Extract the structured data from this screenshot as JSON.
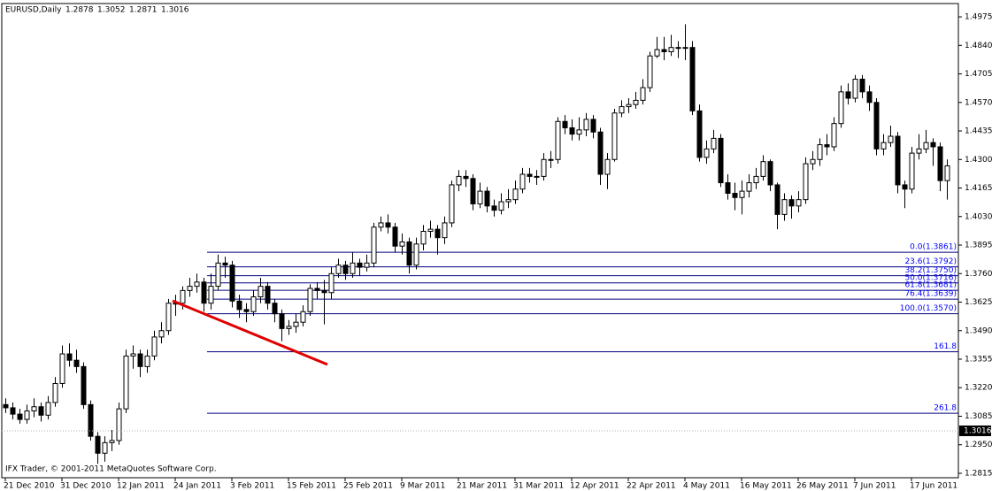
{
  "chart_data": {
    "type": "candlestick",
    "title": "EURUSD,Daily",
    "header_values": [
      1.2878,
      1.3052,
      1.2871,
      1.3016
    ],
    "footer": "IFX Trader, © 2001-2011 MetaQuotes Software Corp.",
    "categories": [
      "21 Dec 2010",
      null,
      null,
      null,
      null,
      null,
      null,
      null,
      "31 Dec 2010",
      null,
      null,
      null,
      null,
      null,
      null,
      null,
      "12 Jan 2011",
      null,
      null,
      null,
      null,
      null,
      null,
      null,
      "24 Jan 2011",
      null,
      null,
      null,
      null,
      null,
      null,
      null,
      "3 Feb 2011",
      null,
      null,
      null,
      null,
      null,
      null,
      null,
      "15 Feb 2011",
      null,
      null,
      null,
      null,
      null,
      null,
      null,
      "25 Feb 2011",
      null,
      null,
      null,
      null,
      null,
      null,
      null,
      "9 Mar 2011",
      null,
      null,
      null,
      null,
      null,
      null,
      null,
      "21 Mar 2011",
      null,
      null,
      null,
      null,
      null,
      null,
      null,
      "31 Mar 2011",
      null,
      null,
      null,
      null,
      null,
      null,
      null,
      "12 Apr 2011",
      null,
      null,
      null,
      null,
      null,
      null,
      null,
      "22 Apr 2011",
      null,
      null,
      null,
      null,
      null,
      null,
      null,
      "4 May 2011",
      null,
      null,
      null,
      null,
      null,
      null,
      null,
      "16 May 2011",
      null,
      null,
      null,
      null,
      null,
      null,
      null,
      "26 May 2011",
      null,
      null,
      null,
      null,
      null,
      null,
      null,
      "7 Jun 2011",
      null,
      null,
      null,
      null,
      null,
      null,
      null,
      "17 Jun 2011",
      null,
      null,
      null,
      null,
      null
    ],
    "open": [
      1.314,
      1.3125,
      1.3095,
      1.307,
      1.311,
      1.313,
      1.309,
      1.315,
      1.324,
      1.338,
      1.335,
      1.332,
      1.314,
      1.299,
      1.291,
      1.296,
      1.297,
      1.312,
      1.337,
      1.338,
      1.332,
      1.337,
      1.346,
      1.349,
      1.362,
      1.362,
      1.368,
      1.37,
      1.372,
      1.362,
      1.37,
      1.381,
      1.38,
      1.363,
      1.359,
      1.358,
      1.365,
      1.37,
      1.362,
      1.357,
      1.35,
      1.351,
      1.353,
      1.358,
      1.369,
      1.368,
      1.367,
      1.376,
      1.38,
      1.376,
      1.381,
      1.379,
      1.381,
      1.398,
      1.4,
      1.398,
      1.389,
      1.391,
      1.38,
      1.39,
      1.396,
      1.397,
      1.393,
      1.4,
      1.418,
      1.422,
      1.421,
      1.409,
      1.415,
      1.408,
      1.406,
      1.41,
      1.411,
      1.416,
      1.423,
      1.422,
      1.422,
      1.43,
      1.43,
      1.448,
      1.445,
      1.442,
      1.444,
      1.449,
      1.443,
      1.423,
      1.43,
      1.452,
      1.455,
      1.456,
      1.458,
      1.464,
      1.479,
      1.482,
      1.481,
      1.483,
      1.483,
      1.483,
      1.453,
      1.431,
      1.435,
      1.44,
      1.419,
      1.414,
      1.412,
      1.415,
      1.419,
      1.422,
      1.429,
      1.418,
      1.404,
      1.411,
      1.408,
      1.411,
      1.428,
      1.43,
      1.437,
      1.436,
      1.447,
      1.462,
      1.459,
      1.468,
      1.462,
      1.457,
      1.435,
      1.438,
      1.441,
      1.418,
      1.416,
      1.433,
      1.435,
      1.438,
      1.436,
      1.42
    ],
    "high": [
      1.317,
      1.315,
      1.312,
      1.314,
      1.317,
      1.315,
      1.318,
      1.327,
      1.342,
      1.343,
      1.34,
      1.334,
      1.316,
      1.301,
      1.299,
      1.302,
      1.315,
      1.34,
      1.342,
      1.34,
      1.34,
      1.349,
      1.353,
      1.364,
      1.366,
      1.37,
      1.374,
      1.376,
      1.374,
      1.376,
      1.385,
      1.384,
      1.382,
      1.366,
      1.362,
      1.368,
      1.374,
      1.372,
      1.364,
      1.359,
      1.354,
      1.357,
      1.361,
      1.371,
      1.372,
      1.373,
      1.379,
      1.383,
      1.382,
      1.386,
      1.383,
      1.385,
      1.4,
      1.403,
      1.404,
      1.4,
      1.395,
      1.393,
      1.393,
      1.399,
      1.401,
      1.399,
      1.403,
      1.42,
      1.425,
      1.425,
      1.423,
      1.419,
      1.417,
      1.411,
      1.414,
      1.416,
      1.42,
      1.426,
      1.426,
      1.425,
      1.433,
      1.434,
      1.45,
      1.451,
      1.449,
      1.45,
      1.452,
      1.451,
      1.445,
      1.433,
      1.454,
      1.458,
      1.459,
      1.462,
      1.468,
      1.481,
      1.488,
      1.488,
      1.489,
      1.486,
      1.494,
      1.486,
      1.456,
      1.439,
      1.444,
      1.442,
      1.423,
      1.419,
      1.42,
      1.423,
      1.426,
      1.432,
      1.43,
      1.419,
      1.414,
      1.413,
      1.415,
      1.431,
      1.434,
      1.44,
      1.442,
      1.45,
      1.465,
      1.466,
      1.47,
      1.47,
      1.465,
      1.459,
      1.442,
      1.446,
      1.443,
      1.42,
      1.436,
      1.442,
      1.444,
      1.44,
      1.438,
      1.43
    ],
    "low": [
      1.31,
      1.307,
      1.305,
      1.305,
      1.308,
      1.306,
      1.307,
      1.313,
      1.322,
      1.332,
      1.329,
      1.312,
      1.297,
      1.286,
      1.287,
      1.292,
      1.295,
      1.31,
      1.331,
      1.327,
      1.329,
      1.335,
      1.343,
      1.347,
      1.356,
      1.359,
      1.365,
      1.367,
      1.358,
      1.359,
      1.368,
      1.374,
      1.36,
      1.355,
      1.353,
      1.356,
      1.362,
      1.359,
      1.353,
      1.344,
      1.347,
      1.348,
      1.351,
      1.356,
      1.364,
      1.352,
      1.364,
      1.374,
      1.373,
      1.374,
      1.375,
      1.377,
      1.379,
      1.396,
      1.395,
      1.386,
      1.385,
      1.376,
      1.378,
      1.387,
      1.393,
      1.385,
      1.39,
      1.398,
      1.415,
      1.417,
      1.406,
      1.407,
      1.405,
      1.403,
      1.404,
      1.407,
      1.409,
      1.414,
      1.419,
      1.418,
      1.42,
      1.426,
      1.428,
      1.442,
      1.439,
      1.439,
      1.441,
      1.44,
      1.418,
      1.416,
      1.429,
      1.45,
      1.452,
      1.454,
      1.456,
      1.462,
      1.478,
      1.477,
      1.479,
      1.478,
      1.477,
      1.451,
      1.429,
      1.428,
      1.433,
      1.417,
      1.411,
      1.406,
      1.404,
      1.412,
      1.416,
      1.42,
      1.415,
      1.397,
      1.401,
      1.402,
      1.405,
      1.409,
      1.425,
      1.427,
      1.432,
      1.434,
      1.445,
      1.456,
      1.457,
      1.459,
      1.453,
      1.432,
      1.432,
      1.436,
      1.414,
      1.407,
      1.414,
      1.43,
      1.433,
      1.427,
      1.415,
      1.411
    ],
    "close": [
      1.3125,
      1.3095,
      1.307,
      1.311,
      1.313,
      1.309,
      1.315,
      1.324,
      1.338,
      1.335,
      1.332,
      1.314,
      1.299,
      1.291,
      1.296,
      1.297,
      1.312,
      1.337,
      1.338,
      1.332,
      1.337,
      1.346,
      1.349,
      1.362,
      1.362,
      1.368,
      1.37,
      1.372,
      1.362,
      1.37,
      1.381,
      1.38,
      1.363,
      1.359,
      1.358,
      1.365,
      1.37,
      1.362,
      1.357,
      1.35,
      1.351,
      1.353,
      1.358,
      1.369,
      1.368,
      1.367,
      1.376,
      1.38,
      1.376,
      1.381,
      1.379,
      1.381,
      1.398,
      1.4,
      1.398,
      1.389,
      1.391,
      1.38,
      1.39,
      1.396,
      1.397,
      1.393,
      1.4,
      1.418,
      1.422,
      1.421,
      1.409,
      1.415,
      1.408,
      1.406,
      1.41,
      1.411,
      1.416,
      1.423,
      1.422,
      1.422,
      1.43,
      1.43,
      1.448,
      1.445,
      1.442,
      1.444,
      1.449,
      1.443,
      1.423,
      1.43,
      1.452,
      1.455,
      1.456,
      1.458,
      1.464,
      1.479,
      1.482,
      1.481,
      1.483,
      1.483,
      1.483,
      1.453,
      1.431,
      1.435,
      1.44,
      1.419,
      1.414,
      1.412,
      1.415,
      1.419,
      1.422,
      1.429,
      1.418,
      1.404,
      1.411,
      1.408,
      1.411,
      1.428,
      1.43,
      1.437,
      1.436,
      1.447,
      1.462,
      1.459,
      1.468,
      1.462,
      1.457,
      1.435,
      1.438,
      1.441,
      1.418,
      1.416,
      1.433,
      1.435,
      1.438,
      1.436,
      1.42,
      1.427
    ],
    "ylim": [
      1.2794,
      1.5038
    ],
    "yticks": [
      1.4975,
      {
        "value": 1.484,
        "label": "1.4840"
      },
      1.4705,
      {
        "value": 1.457,
        "label": "1.4570"
      },
      1.4435,
      {
        "value": 1.43,
        "label": "1.4300"
      },
      1.4165,
      {
        "value": 1.403,
        "label": "1.4030"
      },
      1.3895,
      {
        "value": 1.376,
        "label": "1.3760"
      },
      1.3625,
      {
        "value": 1.349,
        "label": "1.3490"
      },
      1.3355,
      {
        "value": 1.322,
        "label": "1.3220"
      },
      1.3085,
      {
        "value": 1.295,
        "label": "1.2950"
      },
      1.2815
    ],
    "last_price": 1.3016,
    "fibonacci": [
      {
        "label": "0.0(1.3861)",
        "value": 1.3861
      },
      {
        "label": "23.6(1.3792)",
        "value": 1.3792
      },
      {
        "label": "38.2(1.3750)",
        "value": 1.375
      },
      {
        "label": "50.0(1.3716)",
        "value": 1.3716
      },
      {
        "label": "61.8(1.3681)",
        "value": 1.3681
      },
      {
        "label": "76.4(1.3639)",
        "value": 1.3639
      },
      {
        "label": "100.0(1.3570)",
        "value": 1.357
      },
      {
        "label": "161.8",
        "value": 1.339
      },
      {
        "label": "261.8",
        "value": 1.3099
      }
    ],
    "colors": {
      "up": "#ffffff",
      "down": "#000000",
      "outline": "#000000",
      "fib_line": "#000080",
      "fib_label": "#0000ff",
      "last_price_line": "#b0b0b0"
    }
  }
}
